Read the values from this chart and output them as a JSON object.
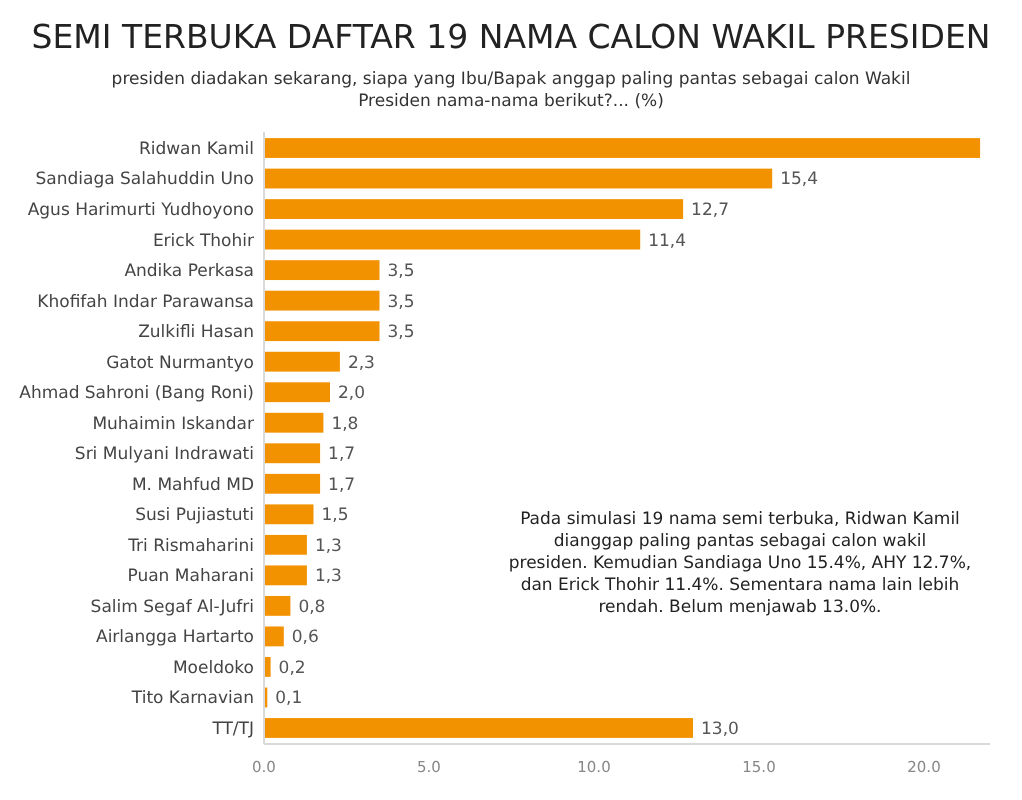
{
  "chart_data": {
    "type": "bar",
    "orientation": "horizontal",
    "title": "SEMI TERBUKA DAFTAR 19 NAMA CALON WAKIL PRESIDEN",
    "subtitle": "presiden diadakan sekarang, siapa yang Ibu/Bapak anggap paling pantas sebagai calon Wakil Presiden nama-nama berikut?... (%)",
    "categories": [
      "Ridwan Kamil",
      "Sandiaga Salahuddin Uno",
      "Agus Harimurti Yudhoyono",
      "Erick Thohir",
      "Andika Perkasa",
      "Khofifah Indar Parawansa",
      "Zulkifli Hasan",
      "Gatot Nurmantyo",
      "Ahmad Sahroni (Bang Roni)",
      "Muhaimin Iskandar",
      "Sri Mulyani Indrawati",
      "M. Mahfud MD",
      "Susi Pujiastuti",
      "Tri Rismaharini",
      "Puan Maharani",
      "Salim Segaf Al-Jufri",
      "Airlangga Hartarto",
      "Moeldoko",
      "Tito Karnavian",
      "TT/TJ"
    ],
    "values": [
      21.7,
      15.4,
      12.7,
      11.4,
      3.5,
      3.5,
      3.5,
      2.3,
      2.0,
      1.8,
      1.7,
      1.7,
      1.5,
      1.3,
      1.3,
      0.8,
      0.6,
      0.2,
      0.1,
      13.0
    ],
    "value_labels": [
      null,
      "15,4",
      "12,7",
      "11,4",
      "3,5",
      "3,5",
      "3,5",
      "2,3",
      "2,0",
      "1,8",
      "1,7",
      "1,7",
      "1,5",
      "1,3",
      "1,3",
      "0,8",
      "0,6",
      "0,2",
      "0,1",
      "13,0"
    ],
    "color": "#f39200",
    "xlim": [
      0,
      22
    ],
    "xticks": [
      {
        "value": 0,
        "label": "0.0"
      },
      {
        "value": 5,
        "label": "5.0"
      },
      {
        "value": 10,
        "label": "10.0"
      },
      {
        "value": 15,
        "label": "15.0"
      },
      {
        "value": 20,
        "label": "20.0"
      }
    ],
    "annotations": [
      "Pada simulasi 19 nama semi terbuka, Ridwan Kamil dianggap paling pantas sebagai calon wakil presiden. Kemudian Sandiaga Uno 15.4%, AHY 12.7%, dan Erick Thohir 11.4%. Sementara nama lain lebih rendah. Belum menjawab 13.0%."
    ]
  }
}
